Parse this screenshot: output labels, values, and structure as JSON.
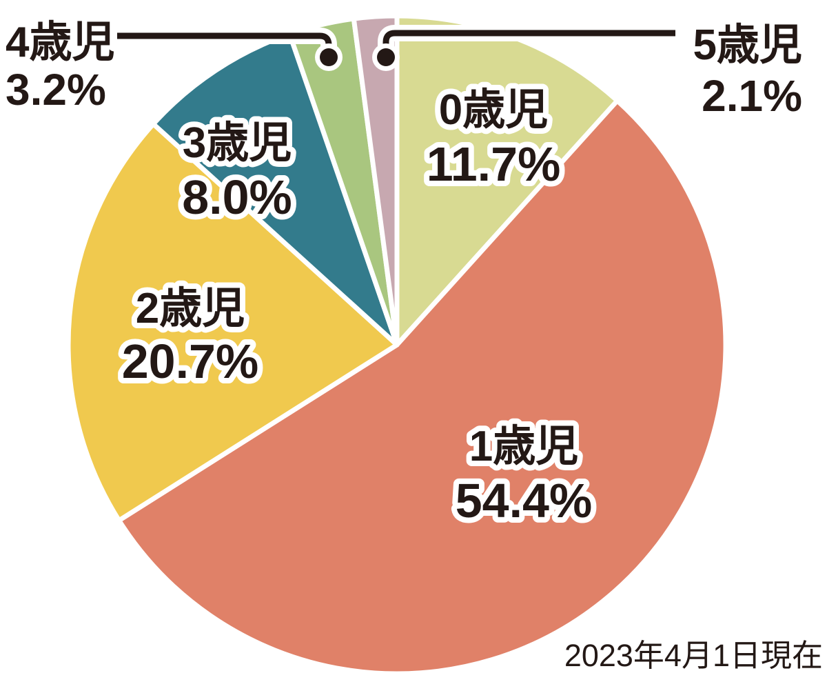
{
  "chart_data": {
    "type": "pie",
    "title": "",
    "note": "2023年4月1日現在",
    "unit": "%",
    "start_angle_deg": 0,
    "direction": "clockwise",
    "legend_position": "labels on slices; callout leaders for small slices (4歳児 top-left, 5歳児 top-right)",
    "background_color": "#ffffff",
    "text_color": "#231815",
    "slice_border_color": "#ffffff",
    "categories": [
      "0歳児",
      "1歳児",
      "2歳児",
      "3歳児",
      "4歳児",
      "5歳児"
    ],
    "values": [
      11.7,
      54.4,
      20.7,
      8.0,
      3.2,
      2.1
    ],
    "slices": [
      {
        "label": "0歳児",
        "value": 11.7,
        "display": "11.7%",
        "color": "#d8da92"
      },
      {
        "label": "1歳児",
        "value": 54.4,
        "display": "54.4%",
        "color": "#e08168"
      },
      {
        "label": "2歳児",
        "value": 20.7,
        "display": "20.7%",
        "color": "#f0c94e"
      },
      {
        "label": "3歳児",
        "value": 8.0,
        "display": "8.0%",
        "color": "#337b8c"
      },
      {
        "label": "4歳児",
        "value": 3.2,
        "display": "3.2%",
        "color": "#a9c67f"
      },
      {
        "label": "5歳児",
        "value": 2.1,
        "display": "2.1%",
        "color": "#c7a8b0"
      }
    ]
  }
}
